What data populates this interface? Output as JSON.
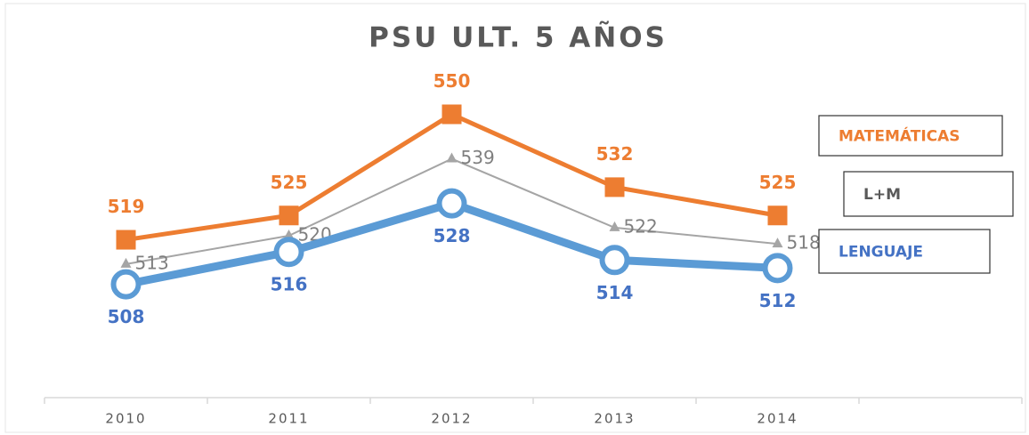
{
  "chart_data": {
    "type": "line",
    "title": "PSU ULT. 5 AÑOS",
    "categories": [
      "2010",
      "2011",
      "2012",
      "2013",
      "2014",
      null
    ],
    "series": [
      {
        "name": "MATEMÁTICAS",
        "color": "#ed7d31",
        "marker": "square",
        "values": [
          519,
          525,
          550,
          532,
          525,
          null
        ]
      },
      {
        "name": "L+M",
        "color": "#a5a5a5",
        "marker": "triangle",
        "values": [
          513,
          520,
          539,
          522,
          518,
          null
        ]
      },
      {
        "name": "LENGUAJE",
        "color": "#5b9bd5",
        "marker": "circle",
        "values": [
          508,
          516,
          528,
          514,
          512,
          null
        ]
      }
    ],
    "ylim": [
      480,
      560
    ]
  }
}
